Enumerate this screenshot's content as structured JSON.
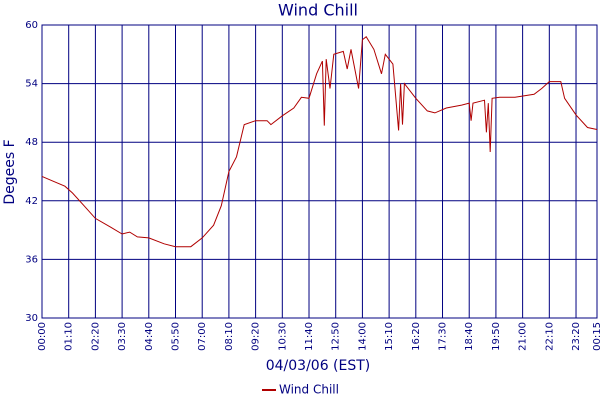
{
  "chart_data": {
    "type": "line",
    "title": "Wind Chill",
    "x_label": "04/03/06 (EST)",
    "y_label": "Degees F",
    "x": [
      "00:00",
      "00:30",
      "01:00",
      "01:20",
      "01:50",
      "02:20",
      "03:00",
      "03:30",
      "03:50",
      "04:10",
      "04:40",
      "05:20",
      "05:50",
      "06:30",
      "07:00",
      "07:30",
      "07:50",
      "08:10",
      "08:30",
      "08:50",
      "09:20",
      "09:50",
      "10:00",
      "10:30",
      "11:00",
      "11:20",
      "11:40",
      "12:00",
      "12:15",
      "12:20",
      "12:25",
      "12:35",
      "12:45",
      "13:10",
      "13:20",
      "13:30",
      "13:50",
      "14:00",
      "14:10",
      "14:30",
      "14:50",
      "15:00",
      "15:20",
      "15:35",
      "15:40",
      "15:45",
      "15:50",
      "16:20",
      "16:50",
      "17:10",
      "17:40",
      "18:20",
      "18:40",
      "18:45",
      "18:50",
      "19:20",
      "19:25",
      "19:30",
      "19:35",
      "19:40",
      "20:00",
      "20:40",
      "21:30",
      "21:50",
      "22:10",
      "22:40",
      "22:50",
      "23:20",
      "23:50",
      "00:15"
    ],
    "series": [
      {
        "name": "Wind Chill",
        "color": "#b00000",
        "values": [
          44.5,
          44.0,
          43.5,
          42.8,
          41.5,
          40.2,
          39.3,
          38.6,
          38.8,
          38.3,
          38.2,
          37.6,
          37.3,
          37.3,
          38.2,
          39.5,
          41.5,
          45,
          46.5,
          49.8,
          50.2,
          50.2,
          49.8,
          50.7,
          51.5,
          52.6,
          52.5,
          55,
          56.3,
          49.7,
          56.5,
          53.5,
          57,
          57.3,
          55.5,
          57.5,
          53.5,
          58.5,
          58.8,
          57.5,
          55,
          57,
          56,
          49.2,
          54,
          49.8,
          54,
          52.5,
          51.2,
          51,
          51.5,
          51.8,
          52,
          50.2,
          52,
          52.3,
          49,
          52,
          47,
          52.5,
          52.6,
          52.6,
          52.9,
          53.5,
          54.2,
          54.2,
          52.5,
          50.8,
          49.5,
          49.3
        ]
      }
    ],
    "xticks": [
      "00:00",
      "01:10",
      "02:20",
      "03:30",
      "04:40",
      "05:50",
      "07:00",
      "08:10",
      "09:20",
      "10:30",
      "11:40",
      "12:50",
      "14:00",
      "15:10",
      "16:20",
      "17:30",
      "18:40",
      "19:50",
      "21:00",
      "22:10",
      "23:20",
      "00:15"
    ],
    "ylim": [
      30,
      60
    ],
    "yticks": [
      30,
      36,
      42,
      48,
      54,
      60
    ],
    "grid": true,
    "legend": "bottom"
  }
}
